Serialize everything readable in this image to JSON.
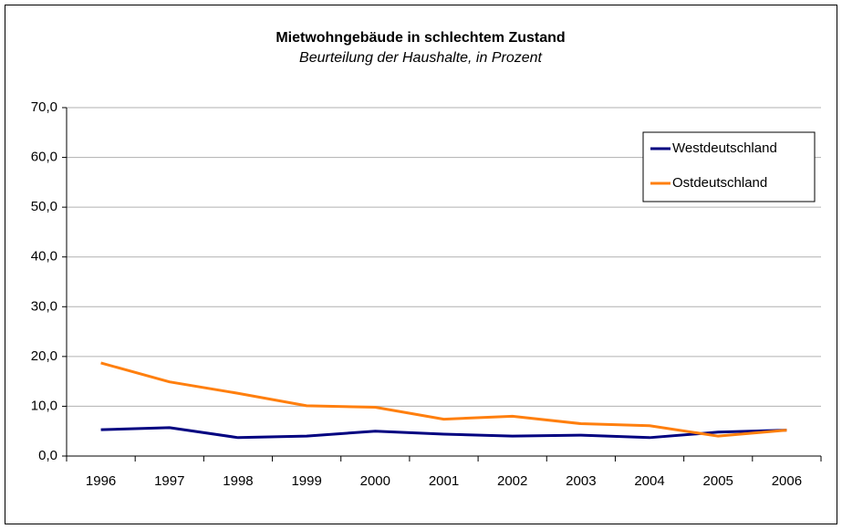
{
  "chart_data": {
    "type": "line",
    "title": "Mietwohngebäude in schlechtem Zustand",
    "subtitle": "Beurteilung der Haushalte, in Prozent",
    "categories": [
      "1996",
      "1997",
      "1998",
      "1999",
      "2000",
      "2001",
      "2002",
      "2003",
      "2004",
      "2005",
      "2006"
    ],
    "series": [
      {
        "name": "Westdeutschland",
        "color": "#000080",
        "values": [
          5.3,
          5.7,
          3.7,
          4.0,
          5.0,
          4.4,
          4.0,
          4.2,
          3.7,
          4.8,
          5.2
        ]
      },
      {
        "name": "Ostdeutschland",
        "color": "#ff7f0e",
        "values": [
          18.7,
          14.9,
          12.6,
          10.1,
          9.8,
          7.4,
          8.0,
          6.5,
          6.1,
          4.0,
          5.2
        ]
      }
    ],
    "ylim": [
      0,
      70
    ],
    "yticks": [
      {
        "value": 0,
        "label": "0,0"
      },
      {
        "value": 10,
        "label": "10,0"
      },
      {
        "value": 20,
        "label": "20,0"
      },
      {
        "value": 30,
        "label": "30,0"
      },
      {
        "value": 40,
        "label": "40,0"
      },
      {
        "value": 50,
        "label": "50,0"
      },
      {
        "value": 60,
        "label": "60,0"
      },
      {
        "value": 70,
        "label": "70,0"
      }
    ],
    "grid": true,
    "legend": "upper right"
  }
}
